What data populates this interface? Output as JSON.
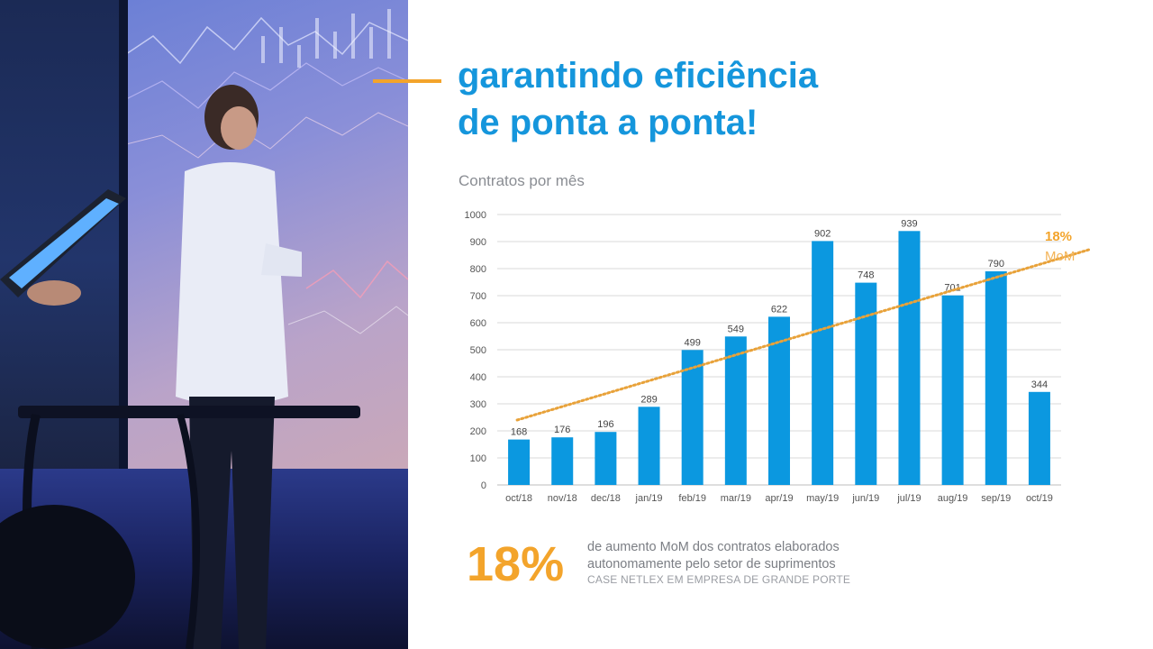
{
  "headline": {
    "line1": "garantindo eficiência",
    "line2": "de ponta a ponta!"
  },
  "chart_subtitle": "Contratos por mês",
  "chart_data": {
    "type": "bar",
    "categories": [
      "oct/18",
      "nov/18",
      "dec/18",
      "jan/19",
      "feb/19",
      "mar/19",
      "apr/19",
      "may/19",
      "jun/19",
      "jul/19",
      "aug/19",
      "sep/19",
      "oct/19"
    ],
    "values": [
      168,
      176,
      196,
      289,
      499,
      549,
      622,
      902,
      748,
      939,
      701,
      790,
      344
    ],
    "ylim": [
      0,
      1000
    ],
    "yticks": [
      0,
      100,
      200,
      300,
      400,
      500,
      600,
      700,
      800,
      900,
      1000
    ],
    "grid": true,
    "bar_color": "#0b98e0",
    "trendline": {
      "label_value": "18%",
      "label_text": "MoM",
      "color": "#e8a23a",
      "start_value": 240,
      "end_value": 830
    }
  },
  "stat": {
    "value": "18%",
    "line1": "de aumento MoM dos contratos elaborados",
    "line2": "autonomamente pelo setor de suprimentos",
    "source": "CASE NETLEX EM EMPRESA DE GRANDE PORTE"
  },
  "colors": {
    "accent_blue": "#1596dc",
    "accent_orange": "#f3a42b"
  }
}
